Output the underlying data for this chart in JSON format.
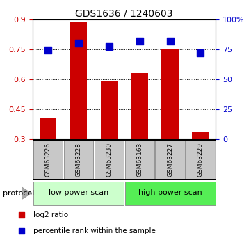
{
  "title": "GDS1636 / 1240603",
  "samples": [
    "GSM63226",
    "GSM63228",
    "GSM63230",
    "GSM63163",
    "GSM63227",
    "GSM63229"
  ],
  "log2_ratio": [
    0.405,
    0.885,
    0.59,
    0.63,
    0.75,
    0.335
  ],
  "percentile_rank": [
    74.5,
    80.0,
    77.0,
    82.0,
    82.0,
    72.0
  ],
  "bar_color": "#cc0000",
  "dot_color": "#0000cc",
  "ylim_left": [
    0.3,
    0.9
  ],
  "ylim_right": [
    0,
    100
  ],
  "yticks_left": [
    0.3,
    0.45,
    0.6,
    0.75,
    0.9
  ],
  "ytick_labels_left": [
    "0.3",
    "0.45",
    "0.6",
    "0.75",
    "0.9"
  ],
  "yticks_right": [
    0,
    25,
    50,
    75,
    100
  ],
  "ytick_labels_right": [
    "0",
    "25",
    "50",
    "75",
    "100%"
  ],
  "grid_yticks": [
    0.45,
    0.6,
    0.75
  ],
  "protocol_groups": [
    {
      "label": "low power scan",
      "n_samples": 3,
      "color": "#ccffcc"
    },
    {
      "label": "high power scan",
      "n_samples": 3,
      "color": "#55ee55"
    }
  ],
  "legend_items": [
    {
      "label": "log2 ratio",
      "color": "#cc0000"
    },
    {
      "label": "percentile rank within the sample",
      "color": "#0000cc"
    }
  ],
  "bar_width": 0.55,
  "dot_size": 45,
  "background_color": "#ffffff",
  "left_tick_color": "#cc0000",
  "right_tick_color": "#0000cc",
  "sample_box_color": "#c8c8c8",
  "sample_box_edge": "#888888"
}
